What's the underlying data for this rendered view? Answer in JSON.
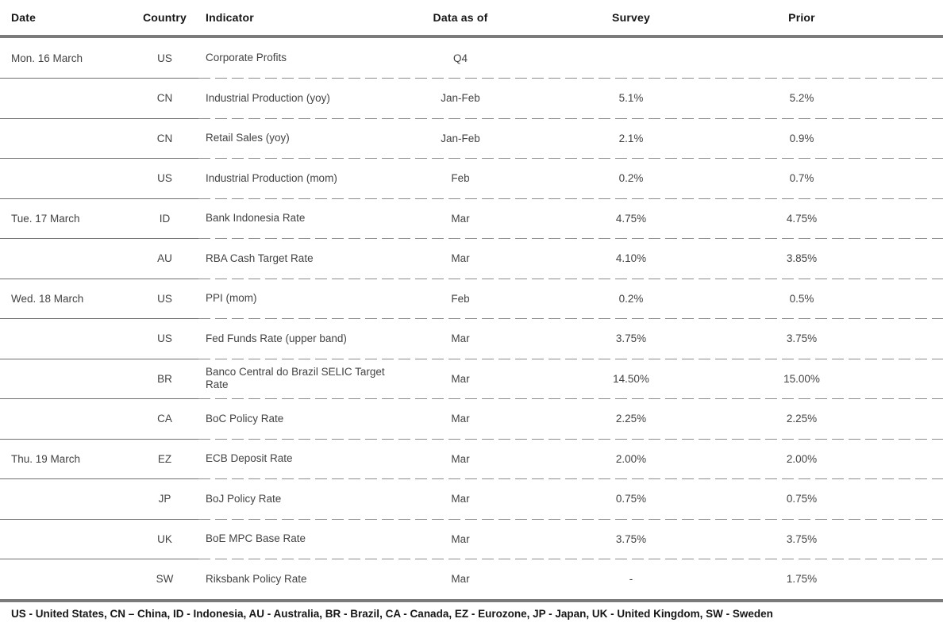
{
  "table": {
    "columns": [
      "Date",
      "Country",
      "Indicator",
      "Data as of",
      "Survey",
      "Prior"
    ],
    "rows": [
      {
        "date": "Mon. 16 March",
        "country": "US",
        "indicator": "Corporate Profits",
        "data_as_of": "Q4",
        "survey": "",
        "prior": ""
      },
      {
        "date": "",
        "country": "CN",
        "indicator": "Industrial Production (yoy)",
        "data_as_of": "Jan-Feb",
        "survey": "5.1%",
        "prior": "5.2%"
      },
      {
        "date": "",
        "country": "CN",
        "indicator": "Retail Sales (yoy)",
        "data_as_of": "Jan-Feb",
        "survey": "2.1%",
        "prior": "0.9%"
      },
      {
        "date": "",
        "country": "US",
        "indicator": "Industrial Production (mom)",
        "data_as_of": "Feb",
        "survey": "0.2%",
        "prior": "0.7%"
      },
      {
        "date": "Tue. 17 March",
        "country": "ID",
        "indicator": "Bank Indonesia Rate",
        "data_as_of": "Mar",
        "survey": "4.75%",
        "prior": "4.75%"
      },
      {
        "date": "",
        "country": "AU",
        "indicator": "RBA Cash Target Rate",
        "data_as_of": "Mar",
        "survey": "4.10%",
        "prior": "3.85%"
      },
      {
        "date": "Wed. 18 March",
        "country": "US",
        "indicator": "PPI (mom)",
        "data_as_of": "Feb",
        "survey": "0.2%",
        "prior": "0.5%"
      },
      {
        "date": "",
        "country": "US",
        "indicator": "Fed Funds Rate (upper band)",
        "data_as_of": "Mar",
        "survey": "3.75%",
        "prior": "3.75%"
      },
      {
        "date": "",
        "country": "BR",
        "indicator": "Banco Central do Brazil SELIC Target Rate",
        "data_as_of": "Mar",
        "survey": "14.50%",
        "prior": "15.00%"
      },
      {
        "date": "",
        "country": "CA",
        "indicator": "BoC Policy Rate",
        "data_as_of": "Mar",
        "survey": "2.25%",
        "prior": "2.25%"
      },
      {
        "date": "Thu. 19 March",
        "country": "EZ",
        "indicator": "ECB Deposit Rate",
        "data_as_of": "Mar",
        "survey": "2.00%",
        "prior": "2.00%"
      },
      {
        "date": "",
        "country": "JP",
        "indicator": "BoJ Policy Rate",
        "data_as_of": "Mar",
        "survey": "0.75%",
        "prior": "0.75%"
      },
      {
        "date": "",
        "country": "UK",
        "indicator": "BoE MPC Base Rate",
        "data_as_of": "Mar",
        "survey": "3.75%",
        "prior": "3.75%"
      },
      {
        "date": "",
        "country": "SW",
        "indicator": "Riksbank Policy Rate",
        "data_as_of": "Mar",
        "survey": "-",
        "prior": "1.75%"
      }
    ]
  },
  "footnote": "US - United States, CN – China, ID - Indonesia, AU - Australia, BR - Brazil, CA - Canada, EZ - Eurozone, JP - Japan, UK - United Kingdom, SW - Sweden",
  "colors": {
    "heavy_rule": "#7b7b7b",
    "solid_separator": "#6e6e6e",
    "dashed_separator": "#8b8b8b",
    "header_text": "#161616",
    "body_text": "#434343"
  }
}
